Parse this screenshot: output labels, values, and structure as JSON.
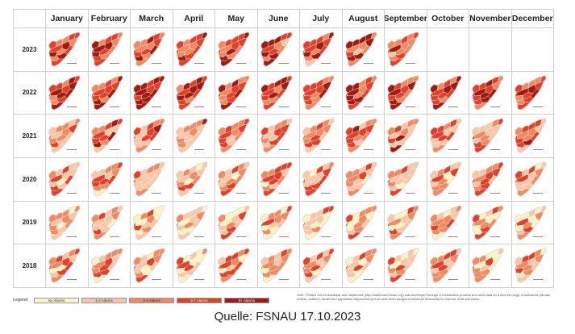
{
  "title": "",
  "months": [
    "January",
    "February",
    "March",
    "April",
    "May",
    "June",
    "July",
    "August",
    "September",
    "October",
    "November",
    "December"
  ],
  "years": [
    {
      "label": "2023",
      "available_months": 9
    },
    {
      "label": "2022",
      "available_months": 12
    },
    {
      "label": "2021",
      "available_months": 12
    },
    {
      "label": "2020",
      "available_months": 12
    },
    {
      "label": "2019",
      "available_months": 12
    },
    {
      "label": "2018",
      "available_months": 12
    }
  ],
  "legend": {
    "title": "Legend",
    "items": [
      {
        "label": "No Alarms",
        "color": "#fff3c4"
      },
      {
        "label": "1-2 Alarms",
        "color": "#f9c7a8"
      },
      {
        "label": "3-4 Alarms",
        "color": "#f08a62"
      },
      {
        "label": "5-7 Alarms",
        "color": "#e2402a"
      },
      {
        "label": "8+ Alarms",
        "color": "#9e1c12"
      }
    ]
  },
  "note": "Note: FSNAU CA EA database and dashboard (http://dashboard.fsnau.org) was developed through a consultative process and uses data on a diverse range of indicators (climate, market, nutrition, health and population displacement) that have been assigned individual thresholds for Normal, Alert and Alarm.",
  "source": "Quelle: FSNAU 17.10.2023",
  "colors": {
    "grid": "#cfcfcf",
    "border": "#8a3a2a"
  }
}
